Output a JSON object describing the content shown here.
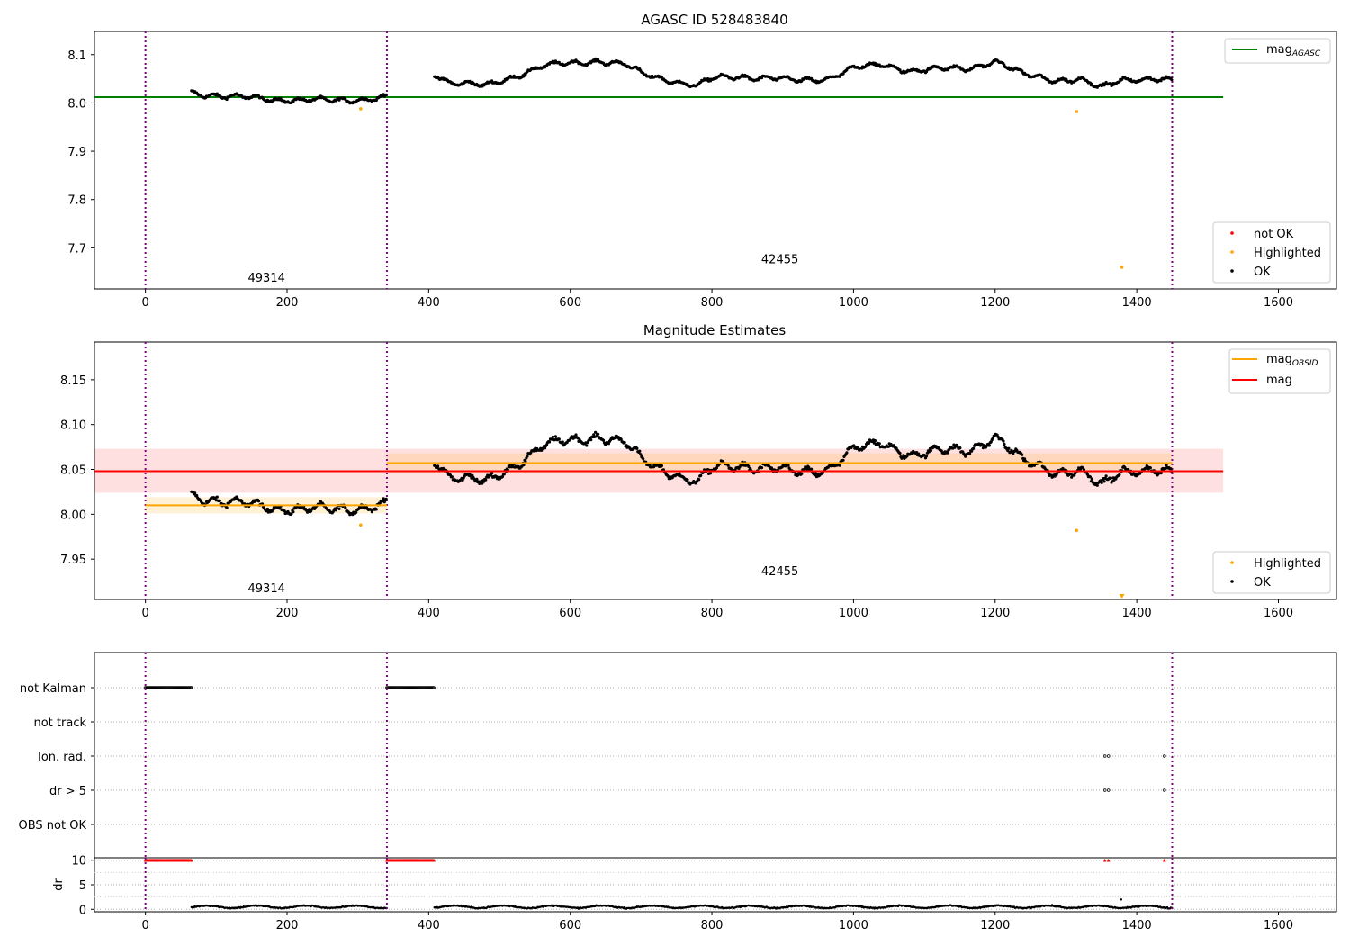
{
  "chart_data": [
    {
      "type": "scatter",
      "title": "AGASC ID 528483840",
      "xlim": [
        -72,
        1682
      ],
      "ylim": [
        7.615,
        8.148
      ],
      "xticks": [
        "0",
        "200",
        "400",
        "600",
        "800",
        "1000",
        "1200",
        "1400",
        "1600"
      ],
      "yticks": [
        "7.7",
        "7.8",
        "7.9",
        "8.0",
        "8.1"
      ],
      "obsid_boundaries": [
        0,
        341,
        1450
      ],
      "obsid_labels": [
        {
          "text": "49314",
          "x": 171,
          "y": 7.63
        },
        {
          "text": "42455",
          "x": 896,
          "y": 7.668
        }
      ],
      "lines": [
        {
          "name": "mag",
          "subscript": "AGASC",
          "color": "#008000",
          "x": [
            -72,
            1522
          ],
          "y": [
            8.012,
            8.012
          ]
        }
      ],
      "series": [
        {
          "name": "OK",
          "color": "#000000",
          "segments": [
            {
              "x": [
                65,
                341
              ],
              "anchors": [
                [
                  65,
                  8.022
                ],
                [
                  120,
                  8.012
                ],
                [
                  200,
                  8.007
                ],
                [
                  260,
                  8.004
                ],
                [
                  341,
                  8.012
                ]
              ]
            },
            {
              "x": [
                408,
                1450
              ],
              "anchors": [
                [
                  408,
                  8.062
                ],
                [
                  430,
                  8.042
                ],
                [
                  480,
                  8.035
                ],
                [
                  520,
                  8.055
                ],
                [
                  560,
                  8.075
                ],
                [
                  600,
                  8.082
                ],
                [
                  640,
                  8.088
                ],
                [
                  680,
                  8.078
                ],
                [
                  700,
                  8.06
                ],
                [
                  740,
                  8.048
                ],
                [
                  780,
                  8.035
                ],
                [
                  800,
                  8.05
                ],
                [
                  840,
                  8.055
                ],
                [
                  880,
                  8.052
                ],
                [
                  920,
                  8.045
                ],
                [
                  960,
                  8.05
                ],
                [
                  1000,
                  8.072
                ],
                [
                  1040,
                  8.078
                ],
                [
                  1080,
                  8.068
                ],
                [
                  1120,
                  8.07
                ],
                [
                  1160,
                  8.07
                ],
                [
                  1200,
                  8.088
                ],
                [
                  1240,
                  8.058
                ],
                [
                  1280,
                  8.048
                ],
                [
                  1320,
                  8.05
                ],
                [
                  1350,
                  8.03
                ],
                [
                  1380,
                  8.048
                ],
                [
                  1420,
                  8.052
                ],
                [
                  1450,
                  8.045
                ]
              ]
            }
          ]
        },
        {
          "name": "Highlighted",
          "color": "#ffa500",
          "points": [
            [
              304,
              7.988
            ],
            [
              1315,
              7.982
            ],
            [
              1379,
              7.66
            ]
          ]
        },
        {
          "name": "not OK",
          "color": "#ff0000",
          "points": []
        }
      ],
      "legend_upper": [
        {
          "name": "mag",
          "subscript": "AGASC",
          "color": "#008000"
        }
      ],
      "legend_lower": [
        "not OK",
        "Highlighted",
        "OK"
      ]
    },
    {
      "type": "scatter",
      "title": "Magnitude Estimates",
      "xlim": [
        -72,
        1682
      ],
      "ylim": [
        7.905,
        8.192
      ],
      "xticks": [
        "0",
        "200",
        "400",
        "600",
        "800",
        "1000",
        "1200",
        "1400",
        "1600"
      ],
      "yticks": [
        "7.95",
        "8.00",
        "8.05",
        "8.10",
        "8.15"
      ],
      "obsid_boundaries": [
        0,
        341,
        1450
      ],
      "obsid_labels": [
        {
          "text": "49314",
          "x": 171,
          "y": 7.913
        },
        {
          "text": "42455",
          "x": 896,
          "y": 7.932
        }
      ],
      "lines": [
        {
          "name": "mag",
          "subscript": "OBSID",
          "color": "#ffa500",
          "x": [
            0,
            341
          ],
          "y": [
            8.01,
            8.01
          ],
          "band": [
            8.001,
            8.019
          ]
        },
        {
          "name": "mag",
          "subscript": "OBSID",
          "color": "#ffa500",
          "x": [
            341,
            1450
          ],
          "y": [
            8.057,
            8.057
          ],
          "band": [
            8.046,
            8.068
          ]
        },
        {
          "name": "mag",
          "color": "#ff0000",
          "x": [
            -72,
            1522
          ],
          "y": [
            8.048,
            8.048
          ],
          "band": [
            8.024,
            8.073
          ]
        }
      ],
      "series": [
        {
          "name": "OK",
          "color": "#000000",
          "note_same_as": "panel 1 OK series"
        },
        {
          "name": "Highlighted",
          "color": "#ffa500",
          "points": [
            [
              304,
              7.988
            ],
            [
              1315,
              7.982
            ],
            [
              1379,
              7.908
            ]
          ]
        }
      ],
      "legend_upper": [
        {
          "name": "mag",
          "subscript": "OBSID",
          "color": "#ffa500"
        },
        {
          "name": "mag",
          "color": "#ff0000"
        }
      ],
      "legend_lower": [
        "Highlighted",
        "OK"
      ]
    },
    {
      "type": "scatter",
      "title": "",
      "xlim": [
        -72,
        1682
      ],
      "xticks": [
        "0",
        "200",
        "400",
        "600",
        "800",
        "1000",
        "1200",
        "1400",
        "1600"
      ],
      "obsid_boundaries": [
        0,
        341,
        1450
      ],
      "flag_rows": [
        "not Kalman",
        "not track",
        "Ion. rad.",
        "dr > 5",
        "OBS not OK"
      ],
      "flags": {
        "not Kalman": [
          [
            0,
            65
          ],
          [
            341,
            408
          ]
        ],
        "not track": [],
        "Ion. rad.": [
          [
            1355,
            1355
          ],
          [
            1360,
            1360
          ],
          [
            1439,
            1439
          ]
        ],
        "dr > 5": [
          [
            1355,
            1355
          ],
          [
            1360,
            1360
          ],
          [
            1439,
            1439
          ]
        ],
        "OBS not OK": []
      },
      "dr": {
        "ylabel": "dr",
        "yticks": [
          "0",
          "5",
          "10"
        ],
        "ylim": [
          -0.5,
          10.5
        ],
        "clipped_at_10": [
          [
            0,
            65
          ],
          [
            341,
            408
          ],
          [
            1355,
            1355
          ],
          [
            1360,
            1360
          ],
          [
            1439,
            1439
          ]
        ],
        "typical_value": 0.5,
        "max_excursion": [
          1378,
          2.0
        ]
      }
    }
  ]
}
